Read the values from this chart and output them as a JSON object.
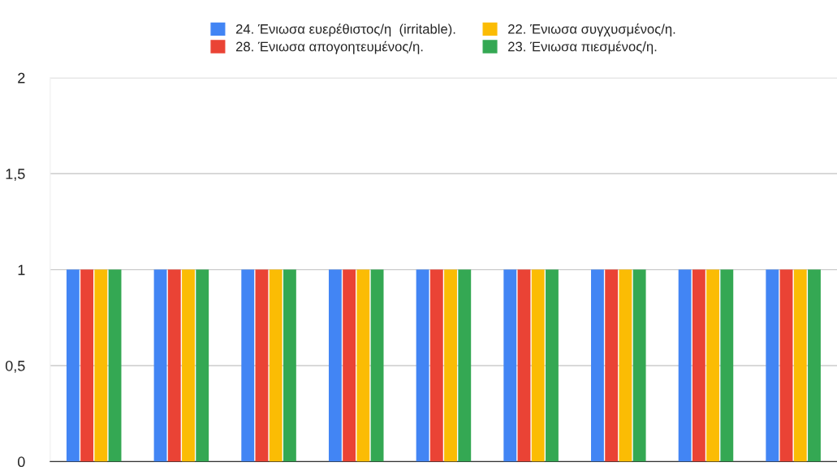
{
  "chart_data": {
    "type": "bar",
    "categories": [
      null,
      null,
      null,
      null,
      null,
      null,
      null,
      null,
      null
    ],
    "series": [
      {
        "name": "24. Ένιωσα ευερέθιστος/η  (irritable).",
        "color": "#4285f4",
        "values": [
          1,
          1,
          1,
          1,
          1,
          1,
          1,
          1,
          1
        ]
      },
      {
        "name": "28. Ένιωσα απογοητευμένος/η.",
        "color": "#ea4335",
        "values": [
          1,
          1,
          1,
          1,
          1,
          1,
          1,
          1,
          1
        ]
      },
      {
        "name": "22. Ένιωσα συγχυσμένος/η.",
        "color": "#fbbc04",
        "values": [
          1,
          1,
          1,
          1,
          1,
          1,
          1,
          1,
          1
        ]
      },
      {
        "name": "23. Ένιωσα πιεσμένος/η.",
        "color": "#34a853",
        "values": [
          1,
          1,
          1,
          1,
          1,
          1,
          1,
          1,
          1
        ]
      }
    ],
    "ylim": [
      0,
      2
    ],
    "yticks": [
      0,
      {
        "value": 0.5,
        "label": "0,5"
      },
      1,
      {
        "value": 1.5,
        "label": "1,5"
      },
      2
    ],
    "grid": "y",
    "legend": "top"
  }
}
